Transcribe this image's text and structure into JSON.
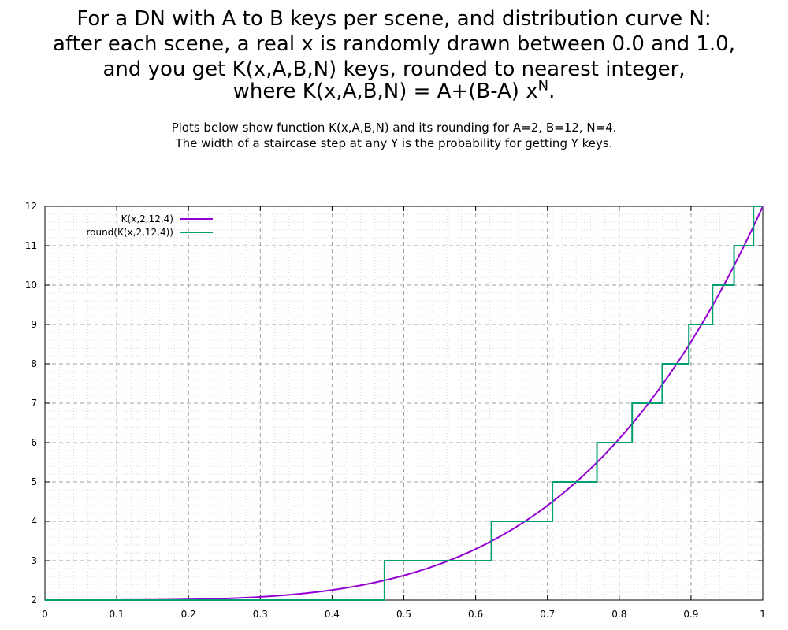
{
  "title": {
    "line1": "For a DN with A to B keys per scene, and distribution curve N:",
    "line2": "after each scene, a real x is randomly drawn between 0.0 and 1.0,",
    "line3": "and you get K(x,A,B,N) keys, rounded to nearest integer,",
    "line4_main": "where K(x,A,B,N) = A+(B-A) x",
    "line4_sup": "N",
    "line4_end": "."
  },
  "subtitle": {
    "line1": "Plots below show function K(x,A,B,N) and its rounding for A=2, B=12, N=4.",
    "line2": "The width of a staircase step at any Y is the probability for getting Y keys."
  },
  "chart_data": {
    "type": "line",
    "function": "K(x) = A+(B-A) x^N",
    "params": {
      "A": 2,
      "B": 12,
      "N": 4
    },
    "xlim": [
      0,
      1
    ],
    "ylim": [
      2,
      12
    ],
    "x_ticks": [
      "0",
      "0.1",
      "0.2",
      "0.3",
      "0.4",
      "0.5",
      "0.6",
      "0.7",
      "0.8",
      "0.9",
      "1"
    ],
    "y_ticks": [
      "2",
      "3",
      "4",
      "5",
      "6",
      "7",
      "8",
      "9",
      "10",
      "11",
      "12"
    ],
    "grid": true,
    "legend_position": "top-left",
    "series": [
      {
        "name": "K(x,2,12,4)",
        "color": "#9400d3",
        "kind": "smooth-curve"
      },
      {
        "name": "round(K(x,2,12,4))",
        "color": "#009e73",
        "kind": "staircase",
        "steps": [
          {
            "y": 2,
            "x_from": 0,
            "x_to": 0.473
          },
          {
            "y": 3,
            "x_from": 0.473,
            "x_to": 0.622
          },
          {
            "y": 4,
            "x_from": 0.622,
            "x_to": 0.707
          },
          {
            "y": 5,
            "x_from": 0.707,
            "x_to": 0.769
          },
          {
            "y": 6,
            "x_from": 0.769,
            "x_to": 0.818
          },
          {
            "y": 7,
            "x_from": 0.818,
            "x_to": 0.86
          },
          {
            "y": 8,
            "x_from": 0.86,
            "x_to": 0.897
          },
          {
            "y": 9,
            "x_from": 0.897,
            "x_to": 0.93
          },
          {
            "y": 10,
            "x_from": 0.93,
            "x_to": 0.96
          },
          {
            "y": 11,
            "x_from": 0.96,
            "x_to": 0.987
          },
          {
            "y": 12,
            "x_from": 0.987,
            "x_to": 1
          }
        ]
      }
    ]
  }
}
